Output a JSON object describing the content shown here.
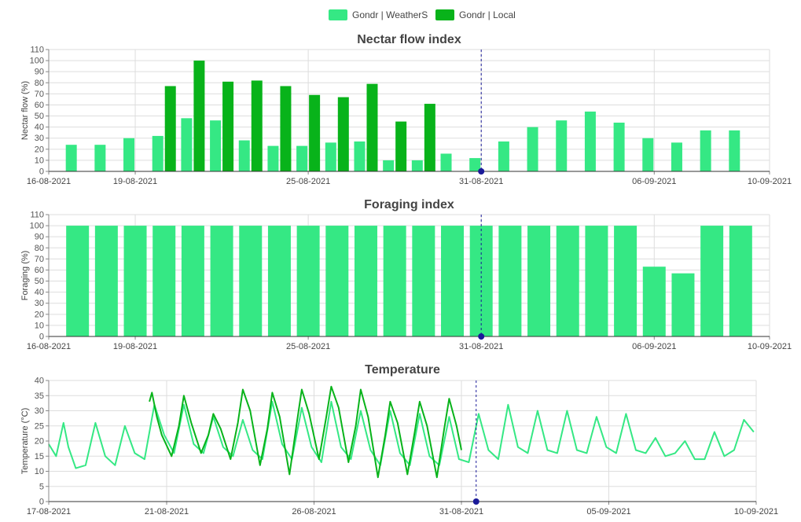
{
  "legend": [
    {
      "label": "Gondr | WeatherS",
      "color": "#35e884"
    },
    {
      "label": "Gondr | Local",
      "color": "#08b31a"
    }
  ],
  "chart_data": [
    {
      "type": "bar",
      "title": "Nectar flow index",
      "ylabel": "Nectar flow (%)",
      "ylim": [
        0,
        110
      ],
      "yticks": [
        0,
        10,
        20,
        30,
        40,
        50,
        60,
        70,
        80,
        90,
        100,
        110
      ],
      "xlim": [
        "2021-08-16",
        "2021-09-10"
      ],
      "xticks": [
        "16-08-2021",
        "19-08-2021",
        "25-08-2021",
        "31-08-2021",
        "06-09-2021",
        "10-09-2021"
      ],
      "grid": true,
      "series": [
        {
          "name": "Gondr | WeatherS",
          "color": "#35e884",
          "x": [
            "2021-08-17",
            "2021-08-18",
            "2021-08-19",
            "2021-08-20",
            "2021-08-21",
            "2021-08-22",
            "2021-08-23",
            "2021-08-24",
            "2021-08-25",
            "2021-08-26",
            "2021-08-27",
            "2021-08-28",
            "2021-08-29",
            "2021-08-30",
            "2021-08-31",
            "2021-09-01",
            "2021-09-02",
            "2021-09-03",
            "2021-09-04",
            "2021-09-05",
            "2021-09-06",
            "2021-09-07",
            "2021-09-08",
            "2021-09-09"
          ],
          "values": [
            24,
            24,
            30,
            32,
            48,
            46,
            28,
            23,
            23,
            26,
            27,
            10,
            10,
            16,
            12,
            27,
            40,
            46,
            54,
            44,
            30,
            26,
            37,
            37
          ]
        },
        {
          "name": "Gondr | Local",
          "color": "#08b31a",
          "x": [
            "2021-08-20",
            "2021-08-21",
            "2021-08-22",
            "2021-08-23",
            "2021-08-24",
            "2021-08-25",
            "2021-08-26",
            "2021-08-27",
            "2021-08-28",
            "2021-08-29"
          ],
          "values": [
            77,
            100,
            81,
            82,
            77,
            69,
            67,
            79,
            45,
            61
          ]
        }
      ],
      "marker": {
        "x": "2021-08-31",
        "y": 0
      }
    },
    {
      "type": "bar",
      "title": "Foraging index",
      "ylabel": "Foraging (%)",
      "ylim": [
        0,
        110
      ],
      "yticks": [
        0,
        10,
        20,
        30,
        40,
        50,
        60,
        70,
        80,
        90,
        100,
        110
      ],
      "xlim": [
        "2021-08-16",
        "2021-09-10"
      ],
      "xticks": [
        "16-08-2021",
        "19-08-2021",
        "25-08-2021",
        "31-08-2021",
        "06-09-2021",
        "10-09-2021"
      ],
      "grid": true,
      "series": [
        {
          "name": "Gondr | WeatherS",
          "color": "#35e884",
          "x": [
            "2021-08-17",
            "2021-08-18",
            "2021-08-19",
            "2021-08-20",
            "2021-08-21",
            "2021-08-22",
            "2021-08-23",
            "2021-08-24",
            "2021-08-25",
            "2021-08-26",
            "2021-08-27",
            "2021-08-28",
            "2021-08-29",
            "2021-08-30",
            "2021-08-31",
            "2021-09-01",
            "2021-09-02",
            "2021-09-03",
            "2021-09-04",
            "2021-09-05",
            "2021-09-06",
            "2021-09-07",
            "2021-09-08",
            "2021-09-09"
          ],
          "values": [
            100,
            100,
            100,
            100,
            100,
            100,
            100,
            100,
            100,
            100,
            100,
            100,
            100,
            100,
            100,
            100,
            100,
            100,
            100,
            100,
            63,
            57,
            100,
            100
          ]
        }
      ],
      "marker": {
        "x": "2021-08-31",
        "y": 0
      }
    },
    {
      "type": "line",
      "title": "Temperature",
      "ylabel": "Temperature (°C)",
      "ylim": [
        0,
        40
      ],
      "yticks": [
        0,
        5,
        10,
        15,
        20,
        25,
        30,
        35,
        40
      ],
      "xlim": [
        "2021-08-17",
        "2021-09-10"
      ],
      "xticks": [
        "17-08-2021",
        "21-08-2021",
        "26-08-2021",
        "31-08-2021",
        "05-09-2021",
        "10-09-2021"
      ],
      "grid": true,
      "series": [
        {
          "name": "Gondr | WeatherS",
          "color": "#35e884",
          "x": [
            "2021-08-17 00:00",
            "2021-08-17 06:00",
            "2021-08-17 12:00",
            "2021-08-17 16:00",
            "2021-08-17 22:00",
            "2021-08-18 06:00",
            "2021-08-18 14:00",
            "2021-08-18 22:00",
            "2021-08-19 06:00",
            "2021-08-19 14:00",
            "2021-08-19 22:00",
            "2021-08-20 06:00",
            "2021-08-20 14:00",
            "2021-08-20 22:00",
            "2021-08-21 06:00",
            "2021-08-21 14:00",
            "2021-08-21 22:00",
            "2021-08-22 06:00",
            "2021-08-22 14:00",
            "2021-08-22 22:00",
            "2021-08-23 06:00",
            "2021-08-23 14:00",
            "2021-08-23 22:00",
            "2021-08-24 06:00",
            "2021-08-24 14:00",
            "2021-08-24 22:00",
            "2021-08-25 06:00",
            "2021-08-25 14:00",
            "2021-08-25 22:00",
            "2021-08-26 06:00",
            "2021-08-26 14:00",
            "2021-08-26 22:00",
            "2021-08-27 06:00",
            "2021-08-27 14:00",
            "2021-08-27 22:00",
            "2021-08-28 06:00",
            "2021-08-28 14:00",
            "2021-08-28 22:00",
            "2021-08-29 06:00",
            "2021-08-29 14:00",
            "2021-08-29 22:00",
            "2021-08-30 06:00",
            "2021-08-30 14:00",
            "2021-08-30 22:00",
            "2021-08-31 06:00",
            "2021-08-31 14:00",
            "2021-08-31 22:00",
            "2021-09-01 06:00",
            "2021-09-01 14:00",
            "2021-09-01 22:00",
            "2021-09-02 06:00",
            "2021-09-02 14:00",
            "2021-09-02 22:00",
            "2021-09-03 06:00",
            "2021-09-03 14:00",
            "2021-09-03 22:00",
            "2021-09-04 06:00",
            "2021-09-04 14:00",
            "2021-09-04 22:00",
            "2021-09-05 06:00",
            "2021-09-05 14:00",
            "2021-09-05 22:00",
            "2021-09-06 06:00",
            "2021-09-06 14:00",
            "2021-09-06 22:00",
            "2021-09-07 06:00",
            "2021-09-07 14:00",
            "2021-09-07 22:00",
            "2021-09-08 06:00",
            "2021-09-08 14:00",
            "2021-09-08 22:00",
            "2021-09-09 06:00",
            "2021-09-09 14:00",
            "2021-09-09 22:00"
          ],
          "values": [
            19,
            15,
            26,
            18,
            11,
            12,
            26,
            15,
            12,
            25,
            16,
            14,
            32,
            22,
            16,
            32,
            19,
            16,
            28,
            18,
            15,
            27,
            17,
            14,
            33,
            19,
            14,
            31,
            18,
            13,
            33,
            18,
            14,
            30,
            17,
            12,
            30,
            16,
            12,
            29,
            15,
            12,
            28,
            14,
            13,
            29,
            17,
            14,
            32,
            18,
            16,
            30,
            17,
            16,
            30,
            17,
            16,
            28,
            18,
            16,
            29,
            17,
            16,
            21,
            15,
            16,
            20,
            14,
            14,
            23,
            15,
            17,
            27,
            23
          ]
        },
        {
          "name": "Gondr | Local",
          "color": "#08b31a",
          "x": [
            "2021-08-20 10:00",
            "2021-08-20 12:00",
            "2021-08-20 16:00",
            "2021-08-20 20:00",
            "2021-08-21 04:00",
            "2021-08-21 10:00",
            "2021-08-21 14:00",
            "2021-08-21 20:00",
            "2021-08-22 04:00",
            "2021-08-22 10:00",
            "2021-08-22 14:00",
            "2021-08-22 20:00",
            "2021-08-23 04:00",
            "2021-08-23 10:00",
            "2021-08-23 14:00",
            "2021-08-23 20:00",
            "2021-08-24 04:00",
            "2021-08-24 10:00",
            "2021-08-24 14:00",
            "2021-08-24 20:00",
            "2021-08-25 04:00",
            "2021-08-25 10:00",
            "2021-08-25 14:00",
            "2021-08-25 20:00",
            "2021-08-26 04:00",
            "2021-08-26 10:00",
            "2021-08-26 14:00",
            "2021-08-26 20:00",
            "2021-08-27 04:00",
            "2021-08-27 10:00",
            "2021-08-27 14:00",
            "2021-08-27 20:00",
            "2021-08-28 04:00",
            "2021-08-28 10:00",
            "2021-08-28 14:00",
            "2021-08-28 20:00",
            "2021-08-29 04:00",
            "2021-08-29 10:00",
            "2021-08-29 14:00",
            "2021-08-29 20:00",
            "2021-08-30 04:00",
            "2021-08-30 10:00",
            "2021-08-30 14:00",
            "2021-08-30 20:00",
            "2021-08-31 00:00"
          ],
          "values": [
            33,
            36,
            28,
            22,
            15,
            25,
            35,
            26,
            16,
            22,
            29,
            24,
            14,
            26,
            37,
            30,
            12,
            24,
            36,
            28,
            9,
            26,
            37,
            29,
            14,
            28,
            38,
            31,
            13,
            25,
            37,
            28,
            8,
            22,
            33,
            26,
            9,
            23,
            33,
            25,
            8,
            24,
            34,
            25,
            17
          ]
        }
      ],
      "marker": {
        "x": "2021-08-31 12:00",
        "y": 0
      }
    }
  ]
}
